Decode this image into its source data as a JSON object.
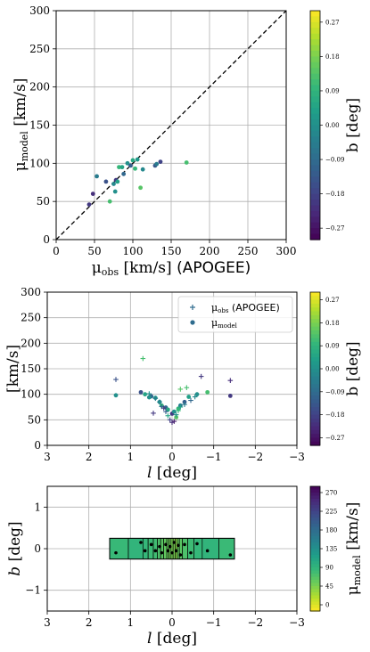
{
  "chart_data": [
    {
      "type": "scatter",
      "id": "panel1",
      "xlabel": "μ_obs [km/s] (APOGEE)",
      "ylabel": "μ_model [km/s]",
      "xlim": [
        0,
        300
      ],
      "ylim": [
        0,
        300
      ],
      "xticks": [
        "0",
        "50",
        "100",
        "150",
        "200",
        "250",
        "300"
      ],
      "yticks": [
        "0",
        "50",
        "100",
        "150",
        "200",
        "250",
        "300"
      ],
      "grid": true,
      "reference_line": {
        "style": "dashed",
        "color": "#000000",
        "from": [
          0,
          0
        ],
        "to": [
          300,
          300
        ]
      },
      "colorbar": {
        "label": "b [deg]",
        "range": [
          -0.3,
          0.3
        ],
        "ticks": [
          "0.27",
          "0.18",
          "0.09",
          "0.00",
          "−0.09",
          "−0.18",
          "−0.27"
        ],
        "colormap": "viridis"
      },
      "points": [
        {
          "x": 43,
          "y": 46,
          "b": -0.2
        },
        {
          "x": 48,
          "y": 60,
          "b": -0.22
        },
        {
          "x": 53,
          "y": 83,
          "b": -0.05
        },
        {
          "x": 65,
          "y": 76,
          "b": -0.15
        },
        {
          "x": 70,
          "y": 50,
          "b": 0.12
        },
        {
          "x": 75,
          "y": 73,
          "b": -0.02
        },
        {
          "x": 77,
          "y": 63,
          "b": 0.0
        },
        {
          "x": 78,
          "y": 78,
          "b": -0.2
        },
        {
          "x": 80,
          "y": 76,
          "b": 0.04
        },
        {
          "x": 82,
          "y": 95,
          "b": 0.1
        },
        {
          "x": 86,
          "y": 95,
          "b": 0.05
        },
        {
          "x": 88,
          "y": 86,
          "b": -0.1
        },
        {
          "x": 93,
          "y": 100,
          "b": 0.0
        },
        {
          "x": 97,
          "y": 97,
          "b": -0.12
        },
        {
          "x": 100,
          "y": 104,
          "b": 0.06
        },
        {
          "x": 103,
          "y": 93,
          "b": 0.1
        },
        {
          "x": 106,
          "y": 105,
          "b": 0.02
        },
        {
          "x": 110,
          "y": 68,
          "b": 0.14
        },
        {
          "x": 113,
          "y": 92,
          "b": -0.02
        },
        {
          "x": 129,
          "y": 97,
          "b": -0.14
        },
        {
          "x": 131,
          "y": 99,
          "b": -0.05
        },
        {
          "x": 136,
          "y": 102,
          "b": -0.18
        },
        {
          "x": 170,
          "y": 101,
          "b": 0.12
        }
      ]
    },
    {
      "type": "scatter",
      "id": "panel2",
      "xlabel": "l [deg]",
      "ylabel": "[km/s]",
      "xlim": [
        3,
        -3
      ],
      "ylim": [
        0,
        300
      ],
      "xticks": [
        "3",
        "2",
        "1",
        "0",
        "−1",
        "−2",
        "−3"
      ],
      "yticks": [
        "0",
        "50",
        "100",
        "150",
        "200",
        "250",
        "300"
      ],
      "grid": true,
      "legend": {
        "placement": "top-right",
        "entries": [
          {
            "marker": "+",
            "label": "μ_obs (APOGEE)"
          },
          {
            "marker": "circle",
            "label": "μ_model"
          }
        ]
      },
      "colorbar": {
        "label": "b [deg]",
        "range": [
          -0.3,
          0.3
        ],
        "ticks": [
          "0.27",
          "0.18",
          "0.09",
          "0.00",
          "−0.09",
          "−0.18",
          "−0.27"
        ],
        "colormap": "viridis"
      },
      "series": [
        {
          "name": "μ_obs (APOGEE)",
          "marker": "+",
          "points": [
            {
              "l": 1.35,
              "v": 129,
              "b": -0.15
            },
            {
              "l": 0.7,
              "v": 170,
              "b": 0.12
            },
            {
              "l": 0.55,
              "v": 101,
              "b": 0.0
            },
            {
              "l": 0.4,
              "v": 92,
              "b": -0.05
            },
            {
              "l": 0.3,
              "v": 85,
              "b": 0.0
            },
            {
              "l": 0.25,
              "v": 76,
              "b": -0.1
            },
            {
              "l": 0.2,
              "v": 73,
              "b": -0.2
            },
            {
              "l": 0.15,
              "v": 66,
              "b": -0.12
            },
            {
              "l": 0.1,
              "v": 58,
              "b": 0.05
            },
            {
              "l": 0.05,
              "v": 50,
              "b": -0.18
            },
            {
              "l": 0.0,
              "v": 45,
              "b": -0.22
            },
            {
              "l": -0.05,
              "v": 47,
              "b": -0.25
            },
            {
              "l": -0.1,
              "v": 60,
              "b": 0.0
            },
            {
              "l": -0.15,
              "v": 68,
              "b": 0.1
            },
            {
              "l": -0.2,
              "v": 75,
              "b": 0.04
            },
            {
              "l": -0.3,
              "v": 80,
              "b": -0.05
            },
            {
              "l": -0.2,
              "v": 110,
              "b": 0.14
            },
            {
              "l": -0.35,
              "v": 113,
              "b": 0.12
            },
            {
              "l": -0.45,
              "v": 88,
              "b": -0.1
            },
            {
              "l": -0.7,
              "v": 135,
              "b": -0.2
            },
            {
              "l": -1.4,
              "v": 127,
              "b": -0.22
            },
            {
              "l": 0.45,
              "v": 63,
              "b": -0.2
            },
            {
              "l": -0.55,
              "v": 95,
              "b": -0.02
            }
          ]
        },
        {
          "name": "μ_model",
          "marker": "circle",
          "points": [
            {
              "l": 1.35,
              "v": 98,
              "b": 0.0
            },
            {
              "l": 0.75,
              "v": 104,
              "b": -0.15
            },
            {
              "l": 0.65,
              "v": 100,
              "b": 0.05
            },
            {
              "l": 0.5,
              "v": 96,
              "b": -0.1
            },
            {
              "l": 0.4,
              "v": 93,
              "b": 0.02
            },
            {
              "l": 0.3,
              "v": 85,
              "b": -0.05
            },
            {
              "l": 0.25,
              "v": 78,
              "b": 0.1
            },
            {
              "l": 0.15,
              "v": 74,
              "b": -0.1
            },
            {
              "l": 0.1,
              "v": 70,
              "b": 0.06
            },
            {
              "l": 0.0,
              "v": 62,
              "b": -0.2
            },
            {
              "l": -0.05,
              "v": 66,
              "b": 0.0
            },
            {
              "l": -0.15,
              "v": 72,
              "b": 0.1
            },
            {
              "l": -0.2,
              "v": 78,
              "b": -0.05
            },
            {
              "l": -0.4,
              "v": 95,
              "b": 0.04
            },
            {
              "l": -0.6,
              "v": 100,
              "b": 0.0
            },
            {
              "l": -0.85,
              "v": 104,
              "b": 0.12
            },
            {
              "l": -1.4,
              "v": 97,
              "b": -0.2
            },
            {
              "l": -0.1,
              "v": 55,
              "b": 0.14
            },
            {
              "l": 0.55,
              "v": 94,
              "b": 0.0
            },
            {
              "l": -0.3,
              "v": 85,
              "b": -0.12
            }
          ]
        }
      ]
    },
    {
      "type": "heatmap",
      "id": "panel3",
      "xlabel": "l [deg]",
      "ylabel": "b [deg]",
      "xlim": [
        3,
        -3
      ],
      "ylim": [
        -1.5,
        1.5
      ],
      "xticks": [
        "3",
        "2",
        "1",
        "0",
        "−1",
        "−2",
        "−3"
      ],
      "yticks": [
        "−1",
        "0",
        "1"
      ],
      "grid": true,
      "region": {
        "l_range": [
          -1.5,
          1.5
        ],
        "b_range": [
          -0.25,
          0.25
        ]
      },
      "colorbar": {
        "label": "μ_model [km/s]",
        "range": [
          0,
          300
        ],
        "ticks": [
          "270",
          "225",
          "180",
          "135",
          "90",
          "45",
          "0"
        ],
        "colormap": "viridis_r"
      },
      "cells": [
        {
          "l": 1.35,
          "b": -0.1,
          "mu": 98
        },
        {
          "l": 0.75,
          "b": 0.15,
          "mu": 104
        },
        {
          "l": 0.65,
          "b": -0.05,
          "mu": 100
        },
        {
          "l": 0.5,
          "b": 0.1,
          "mu": 96
        },
        {
          "l": 0.4,
          "b": -0.05,
          "mu": 93
        },
        {
          "l": 0.3,
          "b": 0.05,
          "mu": 85
        },
        {
          "l": 0.25,
          "b": -0.1,
          "mu": 78
        },
        {
          "l": 0.15,
          "b": 0.1,
          "mu": 74
        },
        {
          "l": 0.1,
          "b": -0.05,
          "mu": 70
        },
        {
          "l": 0.05,
          "b": 0.05,
          "mu": 66
        },
        {
          "l": 0.0,
          "b": -0.1,
          "mu": 62
        },
        {
          "l": -0.05,
          "b": 0.15,
          "mu": 62
        },
        {
          "l": -0.1,
          "b": -0.05,
          "mu": 55
        },
        {
          "l": -0.15,
          "b": 0.08,
          "mu": 72
        },
        {
          "l": -0.2,
          "b": -0.15,
          "mu": 78
        },
        {
          "l": -0.3,
          "b": 0.1,
          "mu": 85
        },
        {
          "l": -0.45,
          "b": -0.1,
          "mu": 95
        },
        {
          "l": -0.6,
          "b": 0.12,
          "mu": 100
        },
        {
          "l": -0.85,
          "b": -0.05,
          "mu": 104
        },
        {
          "l": -1.4,
          "b": -0.15,
          "mu": 97
        }
      ]
    }
  ]
}
